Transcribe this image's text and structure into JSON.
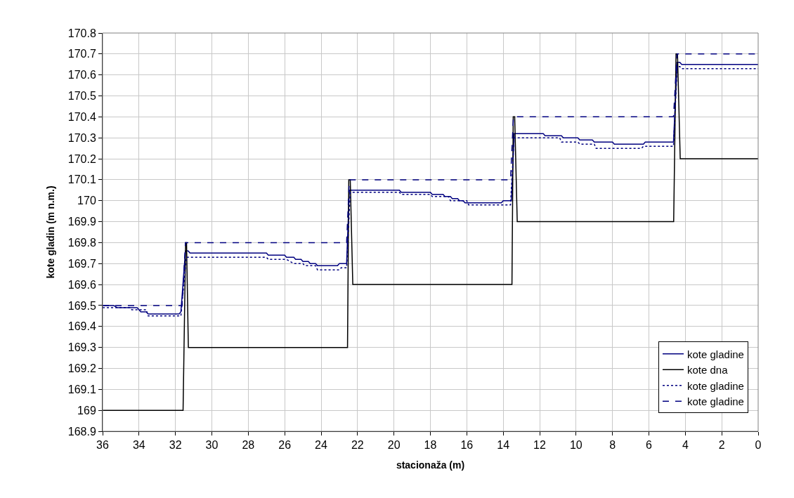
{
  "chart_data": {
    "type": "line",
    "xlabel": "stacionaža (m)",
    "ylabel": "kote gladin (m n.m.)",
    "xlim": [
      36,
      0
    ],
    "xticks": [
      36,
      34,
      32,
      30,
      28,
      26,
      24,
      22,
      20,
      18,
      16,
      14,
      12,
      10,
      8,
      6,
      4,
      2,
      0
    ],
    "ylim": [
      168.9,
      170.8
    ],
    "yticks": [
      168.9,
      169,
      169.1,
      169.2,
      169.3,
      169.4,
      169.5,
      169.6,
      169.7,
      169.8,
      169.9,
      170,
      170.1,
      170.2,
      170.3,
      170.4,
      170.5,
      170.6,
      170.7,
      170.8
    ],
    "grid": true,
    "legend": "bottom right",
    "marker": "none",
    "series": [
      {
        "name": "kote gladine",
        "color": "#000080",
        "line_style": "solid",
        "x": [
          36,
          35.4,
          35.2,
          34.1,
          33.9,
          33.6,
          33.5,
          31.8,
          31.7,
          31.45,
          31.3,
          31.2,
          27.0,
          26.9,
          26.0,
          25.9,
          25.5,
          25.4,
          25.1,
          25.0,
          24.7,
          24.6,
          24.3,
          24.2,
          23.1,
          23.0,
          22.6,
          22.45,
          19.7,
          19.6,
          18.0,
          17.9,
          17.3,
          17.2,
          16.9,
          16.8,
          16.5,
          16.4,
          16.2,
          16.1,
          14.1,
          14.0,
          13.55,
          13.4,
          11.8,
          11.7,
          10.8,
          10.7,
          9.9,
          9.8,
          9.1,
          9.0,
          8.0,
          7.9,
          6.3,
          6.2,
          4.65,
          4.45,
          4.3,
          4.2,
          0
        ],
        "values": [
          169.5,
          169.5,
          169.49,
          169.49,
          169.47,
          169.47,
          169.46,
          169.46,
          169.47,
          169.76,
          169.76,
          169.75,
          169.75,
          169.74,
          169.74,
          169.73,
          169.73,
          169.72,
          169.72,
          169.71,
          169.71,
          169.7,
          169.7,
          169.69,
          169.69,
          169.7,
          169.7,
          170.05,
          170.05,
          170.04,
          170.04,
          170.03,
          170.03,
          170.02,
          170.02,
          170.01,
          170.01,
          170.0,
          170.0,
          169.99,
          169.99,
          170.0,
          170.0,
          170.32,
          170.32,
          170.31,
          170.31,
          170.3,
          170.3,
          170.29,
          170.29,
          170.28,
          170.28,
          170.27,
          170.27,
          170.28,
          170.28,
          170.66,
          170.66,
          170.65,
          170.65
        ]
      },
      {
        "name": "kote dna",
        "color": "#000000",
        "line_style": "solid",
        "x": [
          36,
          31.58,
          31.44,
          31.39,
          31.29,
          22.55,
          22.48,
          22.4,
          22.26,
          13.52,
          13.45,
          13.37,
          13.23,
          4.64,
          4.51,
          4.43,
          4.28,
          0
        ],
        "values": [
          169.0,
          169.0,
          169.8,
          169.8,
          169.3,
          169.3,
          170.1,
          170.1,
          169.6,
          169.6,
          170.4,
          170.4,
          169.9,
          169.9,
          170.7,
          170.7,
          170.2,
          170.2
        ]
      },
      {
        "name": "kote gladine",
        "color": "#000080",
        "line_style": "dotted",
        "x": [
          36,
          34.5,
          34.4,
          33.6,
          33.5,
          31.7,
          31.4,
          27.0,
          26.9,
          25.9,
          25.5,
          25.0,
          24.9,
          24.3,
          24.2,
          23.0,
          22.9,
          22.6,
          22.4,
          19.7,
          19.6,
          18.0,
          17.9,
          17.0,
          16.9,
          16.0,
          15.9,
          13.6,
          13.4,
          10.9,
          10.8,
          9.9,
          9.8,
          9.0,
          8.9,
          6.4,
          6.3,
          4.65,
          4.45,
          4.3,
          4.2,
          0
        ],
        "values": [
          169.49,
          169.49,
          169.48,
          169.48,
          169.45,
          169.45,
          169.73,
          169.73,
          169.72,
          169.72,
          169.7,
          169.7,
          169.69,
          169.69,
          169.67,
          169.67,
          169.68,
          169.68,
          170.04,
          170.04,
          170.03,
          170.03,
          170.02,
          170.02,
          170.0,
          170.0,
          169.98,
          169.98,
          170.3,
          170.3,
          170.28,
          170.28,
          170.27,
          170.27,
          170.25,
          170.25,
          170.26,
          170.26,
          170.64,
          170.64,
          170.63,
          170.63
        ]
      },
      {
        "name": "kote gladine",
        "color": "#000080",
        "line_style": "dashed",
        "x": [
          36,
          31.63,
          31.45,
          22.6,
          22.45,
          13.6,
          13.44,
          4.65,
          4.45,
          0
        ],
        "values": [
          169.5,
          169.5,
          169.8,
          169.8,
          170.1,
          170.1,
          170.4,
          170.4,
          170.7,
          170.7
        ]
      }
    ]
  }
}
